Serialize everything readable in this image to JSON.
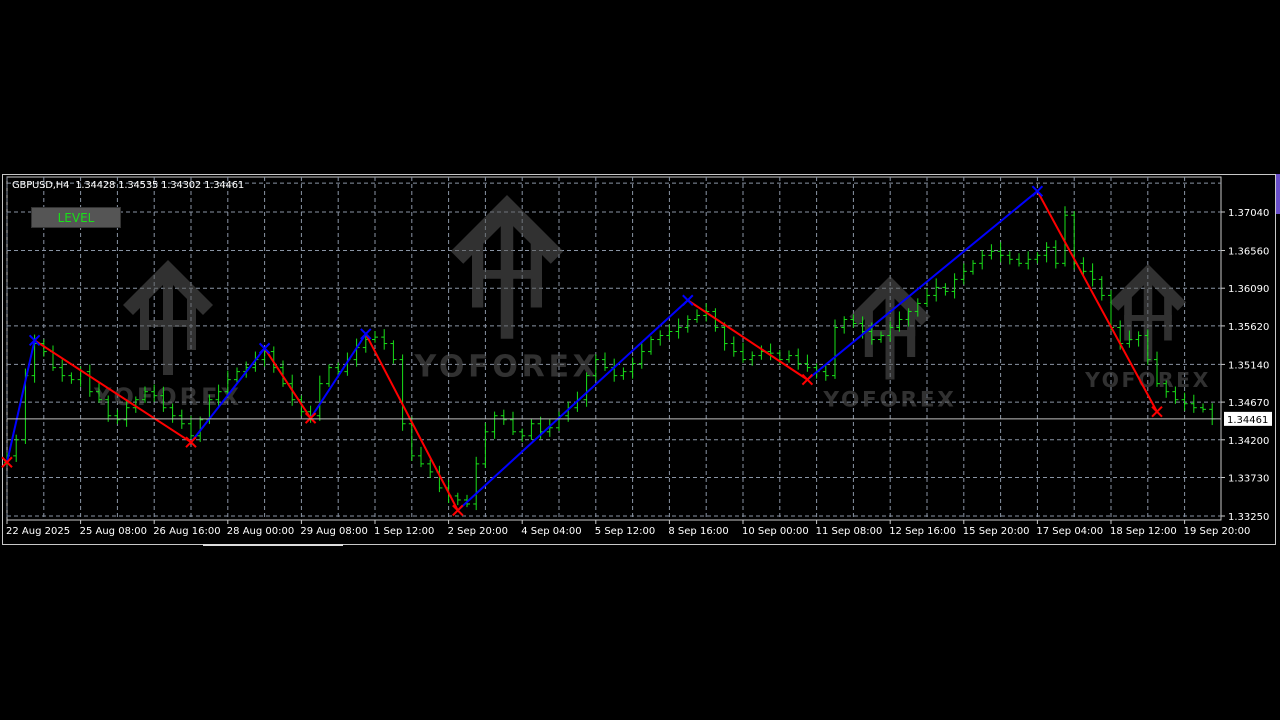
{
  "header": {
    "symbol_timeframe": "GBPUSD,H4",
    "open": "1.34428",
    "high": "1.34535",
    "low": "1.34302",
    "close": "1.34461"
  },
  "level_button": {
    "label": "LEVEL"
  },
  "watermark": {
    "text": "YOFOREX"
  },
  "colors": {
    "background": "#000000",
    "bars": "#19e019",
    "zigzag_up": "#0000ff",
    "zigzag_down": "#ff0000",
    "grid": "#8a95a5",
    "axis_text": "#ffffff"
  },
  "chart_data": {
    "type": "ohlc-bar",
    "symbol": "GBPUSD",
    "timeframe": "H4",
    "grid": true,
    "ylim": [
      1.3325,
      1.3745
    ],
    "y_ticks": [
      "1.37040",
      "1.36560",
      "1.36090",
      "1.35620",
      "1.35140",
      "1.34670",
      "1.34200",
      "1.33730",
      "1.33250"
    ],
    "x_ticks": [
      "22 Aug 2025",
      "25 Aug 08:00",
      "26 Aug 16:00",
      "28 Aug 00:00",
      "29 Aug 08:00",
      "1 Sep 12:00",
      "2 Sep 20:00",
      "4 Sep 04:00",
      "5 Sep 12:00",
      "8 Sep 16:00",
      "10 Sep 00:00",
      "11 Sep 08:00",
      "12 Sep 16:00",
      "15 Sep 20:00",
      "17 Sep 04:00",
      "18 Sep 12:00",
      "19 Sep 20:00"
    ],
    "current_price": "1.34461",
    "close": [
      1.34,
      1.342,
      1.35,
      1.354,
      1.353,
      1.351,
      1.35,
      1.3495,
      1.3505,
      1.348,
      1.347,
      1.345,
      1.3445,
      1.346,
      1.347,
      1.348,
      1.3475,
      1.346,
      1.345,
      1.344,
      1.3425,
      1.3445,
      1.347,
      1.348,
      1.3495,
      1.3505,
      1.351,
      1.352,
      1.353,
      1.351,
      1.349,
      1.347,
      1.3455,
      1.345,
      1.349,
      1.351,
      1.3505,
      1.352,
      1.3535,
      1.3545,
      1.3548,
      1.354,
      1.352,
      1.344,
      1.34,
      1.339,
      1.338,
      1.336,
      1.335,
      1.3345,
      1.334,
      1.339,
      1.343,
      1.345,
      1.3445,
      1.343,
      1.3425,
      1.344,
      1.343,
      1.3435,
      1.345,
      1.346,
      1.347,
      1.35,
      1.352,
      1.351,
      1.35,
      1.3505,
      1.3515,
      1.353,
      1.3545,
      1.355,
      1.3555,
      1.356,
      1.357,
      1.3575,
      1.358,
      1.356,
      1.354,
      1.353,
      1.352,
      1.3525,
      1.353,
      1.3528,
      1.352,
      1.3525,
      1.3515,
      1.351,
      1.3505,
      1.35,
      1.356,
      1.357,
      1.3565,
      1.3555,
      1.3545,
      1.355,
      1.356,
      1.357,
      1.358,
      1.359,
      1.36,
      1.361,
      1.3605,
      1.362,
      1.363,
      1.364,
      1.365,
      1.3655,
      1.365,
      1.3645,
      1.364,
      1.3645,
      1.365,
      1.366,
      1.364,
      1.37,
      1.364,
      1.363,
      1.362,
      1.36,
      1.356,
      1.354,
      1.3545,
      1.355,
      1.352,
      1.349,
      1.348,
      1.347,
      1.3465,
      1.346,
      1.3458,
      1.3446
    ],
    "zigzag": [
      {
        "time": "22 Aug 00:00",
        "price": 1.3392,
        "type": "low"
      },
      {
        "time": "22 Aug 12:00",
        "price": 1.3544,
        "type": "high"
      },
      {
        "time": "27 Aug 08:00",
        "price": 1.3417,
        "type": "low"
      },
      {
        "time": "28 Aug 16:00",
        "price": 1.3534,
        "type": "high"
      },
      {
        "time": "29 Aug 12:00",
        "price": 1.3447,
        "type": "low"
      },
      {
        "time": "1 Sep 12:00",
        "price": 1.3552,
        "type": "high"
      },
      {
        "time": "3 Sep 04:00",
        "price": 1.3332,
        "type": "low"
      },
      {
        "time": "9 Sep 08:00",
        "price": 1.3594,
        "type": "high"
      },
      {
        "time": "11 Sep 12:00",
        "price": 1.3495,
        "type": "low"
      },
      {
        "time": "17 Sep 16:00",
        "price": 1.373,
        "type": "high"
      },
      {
        "time": "19 Sep 20:00",
        "price": 1.3455,
        "type": "low"
      }
    ]
  }
}
